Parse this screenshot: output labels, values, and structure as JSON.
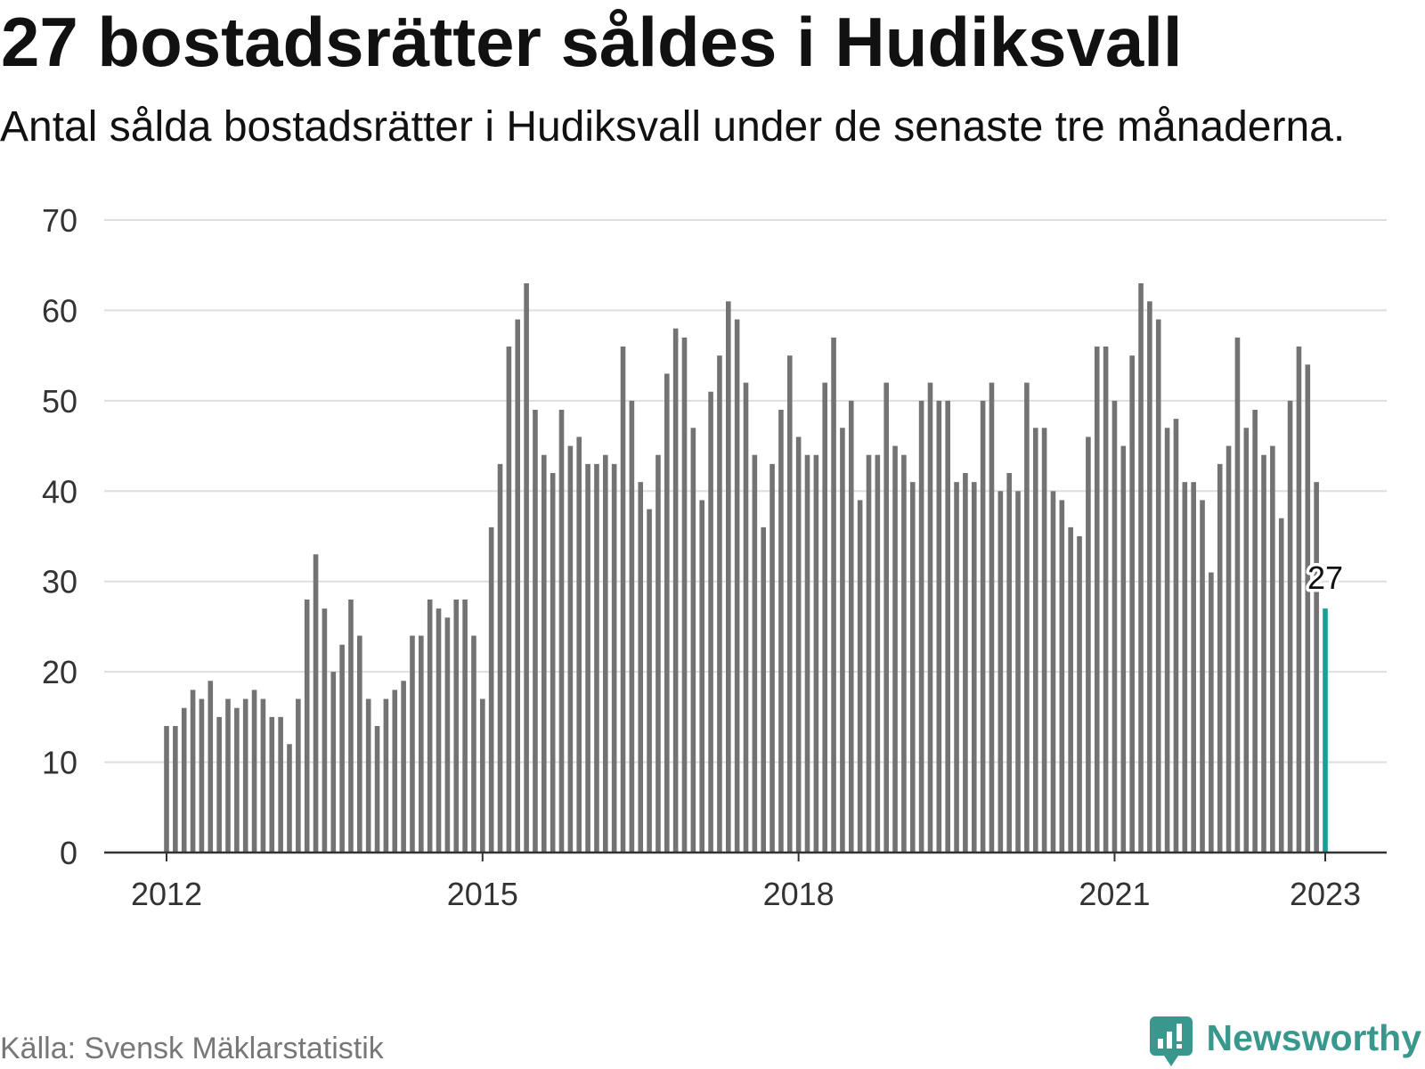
{
  "chart_data": {
    "type": "bar",
    "title": "27 bostadsrätter såldes i Hudiksvall",
    "subtitle": "Antal sålda bostadsrätter i Hudiksvall under de senaste tre månaderna.",
    "x": [
      "2012-01",
      "2012-02",
      "2012-03",
      "2012-04",
      "2012-05",
      "2012-06",
      "2012-07",
      "2012-08",
      "2012-09",
      "2012-10",
      "2012-11",
      "2012-12",
      "2013-01",
      "2013-02",
      "2013-03",
      "2013-04",
      "2013-05",
      "2013-06",
      "2013-07",
      "2013-08",
      "2013-09",
      "2013-10",
      "2013-11",
      "2013-12",
      "2014-01",
      "2014-02",
      "2014-03",
      "2014-04",
      "2014-05",
      "2014-06",
      "2014-07",
      "2014-08",
      "2014-09",
      "2014-10",
      "2014-11",
      "2014-12",
      "2015-01",
      "2015-02",
      "2015-03",
      "2015-04",
      "2015-05",
      "2015-06",
      "2015-07",
      "2015-08",
      "2015-09",
      "2015-10",
      "2015-11",
      "2015-12",
      "2016-01",
      "2016-02",
      "2016-03",
      "2016-04",
      "2016-05",
      "2016-06",
      "2016-07",
      "2016-08",
      "2016-09",
      "2016-10",
      "2016-11",
      "2016-12",
      "2017-01",
      "2017-02",
      "2017-03",
      "2017-04",
      "2017-05",
      "2017-06",
      "2017-07",
      "2017-08",
      "2017-09",
      "2017-10",
      "2017-11",
      "2017-12",
      "2018-01",
      "2018-02",
      "2018-03",
      "2018-04",
      "2018-05",
      "2018-06",
      "2018-07",
      "2018-08",
      "2018-09",
      "2018-10",
      "2018-11",
      "2018-12",
      "2019-01",
      "2019-02",
      "2019-03",
      "2019-04",
      "2019-05",
      "2019-06",
      "2019-07",
      "2019-08",
      "2019-09",
      "2019-10",
      "2019-11",
      "2019-12",
      "2020-01",
      "2020-02",
      "2020-03",
      "2020-04",
      "2020-05",
      "2020-06",
      "2020-07",
      "2020-08",
      "2020-09",
      "2020-10",
      "2020-11",
      "2020-12",
      "2021-01",
      "2021-02",
      "2021-03",
      "2021-04",
      "2021-05",
      "2021-06",
      "2021-07",
      "2021-08",
      "2021-09",
      "2021-10",
      "2021-11",
      "2021-12",
      "2022-01",
      "2022-02",
      "2022-03",
      "2022-04",
      "2022-05",
      "2022-06",
      "2022-07",
      "2022-08",
      "2022-09",
      "2022-10",
      "2022-11",
      "2022-12",
      "2023-01"
    ],
    "values": [
      14,
      14,
      16,
      18,
      17,
      19,
      15,
      17,
      16,
      17,
      18,
      17,
      15,
      15,
      12,
      17,
      28,
      33,
      27,
      20,
      23,
      28,
      24,
      17,
      14,
      17,
      18,
      19,
      24,
      24,
      28,
      27,
      26,
      28,
      28,
      24,
      17,
      36,
      43,
      56,
      59,
      63,
      49,
      44,
      42,
      49,
      45,
      46,
      43,
      43,
      44,
      43,
      56,
      50,
      41,
      38,
      44,
      53,
      58,
      57,
      47,
      39,
      51,
      55,
      61,
      59,
      52,
      44,
      36,
      43,
      49,
      55,
      46,
      44,
      44,
      52,
      57,
      47,
      50,
      39,
      44,
      44,
      52,
      45,
      44,
      41,
      50,
      52,
      50,
      50,
      41,
      42,
      41,
      50,
      52,
      40,
      42,
      40,
      52,
      47,
      47,
      40,
      39,
      36,
      35,
      46,
      56,
      56,
      50,
      45,
      55,
      63,
      61,
      59,
      47,
      48,
      41,
      41,
      39,
      31,
      43,
      45,
      57,
      47,
      49,
      44,
      45,
      37,
      50,
      56,
      54,
      41,
      27
    ],
    "xticks": [
      "2012",
      "2015",
      "2018",
      "2021",
      "2023"
    ],
    "yticks": [
      0,
      10,
      20,
      30,
      40,
      50,
      60,
      70
    ],
    "ylim": [
      0,
      70
    ],
    "grid": true,
    "annotations": [
      {
        "x": "2023-01",
        "label": "27",
        "highlight": true
      }
    ],
    "colors": {
      "bar": "#737373",
      "highlight": "#17a096",
      "grid": "#dedede",
      "axis": "#333333"
    }
  },
  "footer": {
    "source": "Källa: Svensk Mäklarstatistik",
    "logo_text": "Newsworthy",
    "logo_icon": "newsworthy-logo-icon",
    "logo_color": "#3a978e"
  }
}
